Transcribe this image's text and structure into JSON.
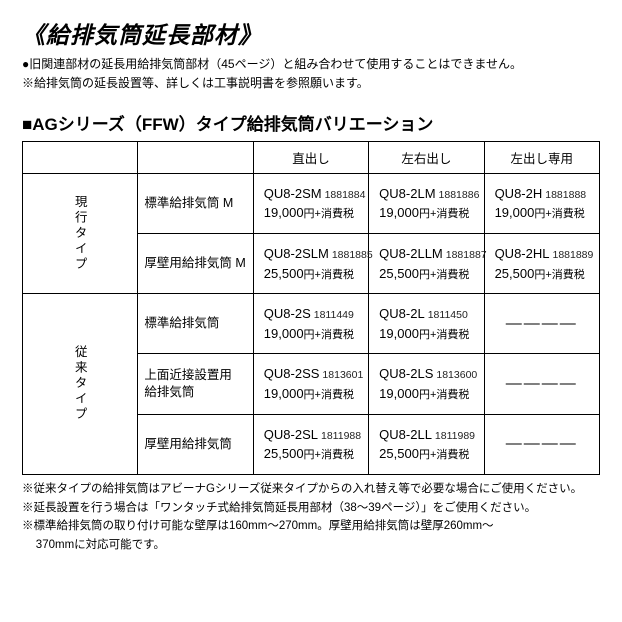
{
  "title": "《給排気筒延長部材》",
  "notes_top": [
    "●旧関連部材の延長用給排気筒部材（45ページ）と組み合わせて使用することはできません。",
    "※給排気筒の延長設置等、詳しくは工事説明書を参照願います。"
  ],
  "subtitle": "■AGシリーズ（FFW）タイプ給排気筒バリエーション",
  "column_headers": [
    "直出し",
    "左右出し",
    "左出し専用"
  ],
  "dash": "――――",
  "categories": [
    {
      "label": "現行タイプ",
      "rows": [
        {
          "name": "標準給排気筒 M",
          "cells": [
            {
              "model": "QU8-2SM",
              "code": "1881884",
              "price": "19,000",
              "yen": "円",
              "tax": "+消費税"
            },
            {
              "model": "QU8-2LM",
              "code": "1881886",
              "price": "19,000",
              "yen": "円",
              "tax": "+消費税"
            },
            {
              "model": "QU8-2H",
              "code": "1881888",
              "price": "19,000",
              "yen": "円",
              "tax": "+消費税"
            }
          ]
        },
        {
          "name": "厚壁用給排気筒 M",
          "cells": [
            {
              "model": "QU8-2SLM",
              "code": "1881885",
              "price": "25,500",
              "yen": "円",
              "tax": "+消費税"
            },
            {
              "model": "QU8-2LLM",
              "code": "1881887",
              "price": "25,500",
              "yen": "円",
              "tax": "+消費税"
            },
            {
              "model": "QU8-2HL",
              "code": "1881889",
              "price": "25,500",
              "yen": "円",
              "tax": "+消費税"
            }
          ]
        }
      ]
    },
    {
      "label": "従来タイプ",
      "rows": [
        {
          "name": "標準給排気筒",
          "cells": [
            {
              "model": "QU8-2S",
              "code": "1811449",
              "price": "19,000",
              "yen": "円",
              "tax": "+消費税"
            },
            {
              "model": "QU8-2L",
              "code": "1811450",
              "price": "19,000",
              "yen": "円",
              "tax": "+消費税"
            },
            null
          ]
        },
        {
          "name": "上面近接設置用\n給排気筒",
          "cells": [
            {
              "model": "QU8-2SS",
              "code": "1813601",
              "price": "19,000",
              "yen": "円",
              "tax": "+消費税"
            },
            {
              "model": "QU8-2LS",
              "code": "1813600",
              "price": "19,000",
              "yen": "円",
              "tax": "+消費税"
            },
            null
          ]
        },
        {
          "name": "厚壁用給排気筒",
          "cells": [
            {
              "model": "QU8-2SL",
              "code": "1811988",
              "price": "25,500",
              "yen": "円",
              "tax": "+消費税"
            },
            {
              "model": "QU8-2LL",
              "code": "1811989",
              "price": "25,500",
              "yen": "円",
              "tax": "+消費税"
            },
            null
          ]
        }
      ]
    }
  ],
  "footnotes": [
    "※従来タイプの給排気筒はアビーナGシリーズ従来タイプからの入れ替え等で必要な場合にご使用ください。",
    "※延長設置を行う場合は「ワンタッチ式給排気筒延長用部材（38～39ページ）」をご使用ください。",
    "※標準給排気筒の取り付け可能な壁厚は160mm～270mm。厚壁用給排気筒は壁厚260mm～",
    "370mmに対応可能です。"
  ]
}
